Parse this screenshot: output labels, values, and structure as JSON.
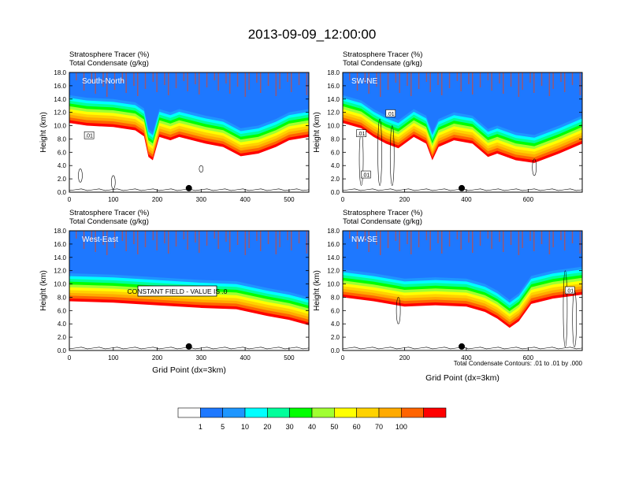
{
  "figure": {
    "title": "2013-09-09_12:00:00",
    "footnote": "Total Condensate Contours: .01 to .01 by .000",
    "y_axis_label": "Height (km)",
    "x_axis_label": "Grid Point (dx=3km)",
    "line1": "Stratosphere Tracer   (%)",
    "line2": "Total Condensate   (g/kg)"
  },
  "colorbar": {
    "labels": [
      "1",
      "5",
      "10",
      "20",
      "30",
      "40",
      "50",
      "60",
      "70",
      "100"
    ],
    "colors": [
      "#ffffff",
      "#1e78ff",
      "#1e96ff",
      "#00ffff",
      "#00ff9b",
      "#00ff00",
      "#a0ff32",
      "#ffff00",
      "#ffd200",
      "#ffaa00",
      "#ff6400",
      "#ff0000"
    ]
  },
  "chart_data": [
    {
      "type": "heatmap",
      "panel": "South-North",
      "xlim": [
        0,
        545
      ],
      "ylim": [
        0,
        18
      ],
      "xticks": [
        "0",
        "100",
        "200",
        "300",
        "400",
        "500"
      ],
      "xtick_values": [
        0,
        100,
        200,
        300,
        400,
        500
      ],
      "yticks": [
        "0.0",
        "2.0",
        "4.0",
        "6.0",
        "8.0",
        "10.0",
        "12.0",
        "14.0",
        "16.0",
        "18.0"
      ],
      "marker_x": 272,
      "contour_labels": [
        {
          "text": ".01",
          "x": 45,
          "y": 8.5
        }
      ],
      "tracer_front": [
        [
          0,
          14.6
        ],
        [
          40,
          14.2
        ],
        [
          100,
          14.0
        ],
        [
          150,
          13.5
        ],
        [
          170,
          12.6
        ],
        [
          180,
          9.5
        ],
        [
          190,
          9.0
        ],
        [
          205,
          12.5
        ],
        [
          230,
          12.0
        ],
        [
          250,
          12.5
        ],
        [
          280,
          12.0
        ],
        [
          310,
          11.5
        ],
        [
          350,
          11.0
        ],
        [
          390,
          9.6
        ],
        [
          430,
          10.0
        ],
        [
          470,
          11.0
        ],
        [
          500,
          12.0
        ],
        [
          545,
          12.5
        ]
      ]
    },
    {
      "type": "heatmap",
      "panel": "SW-NE",
      "xlim": [
        0,
        775
      ],
      "ylim": [
        0,
        18
      ],
      "xticks": [
        "0",
        "200",
        "400",
        "600"
      ],
      "xtick_values": [
        0,
        200,
        400,
        600
      ],
      "yticks": [
        "0.0",
        "2.0",
        "4.0",
        "6.0",
        "8.0",
        "10.0",
        "12.0",
        "14.0",
        "16.0",
        "18.0"
      ],
      "marker_x": 385,
      "contour_labels": [
        {
          "text": ".01",
          "x": 60,
          "y": 8.8
        },
        {
          "text": ".01",
          "x": 75,
          "y": 2.6
        },
        {
          "text": ".01",
          "x": 155,
          "y": 11.8
        }
      ],
      "tracer_front": [
        [
          0,
          14.6
        ],
        [
          60,
          13.8
        ],
        [
          100,
          12.5
        ],
        [
          140,
          11.5
        ],
        [
          180,
          10.8
        ],
        [
          230,
          12.5
        ],
        [
          270,
          11.5
        ],
        [
          290,
          9.0
        ],
        [
          310,
          11.0
        ],
        [
          360,
          12.0
        ],
        [
          420,
          11.5
        ],
        [
          470,
          9.5
        ],
        [
          500,
          10.0
        ],
        [
          560,
          9.0
        ],
        [
          620,
          8.6
        ],
        [
          700,
          10.0
        ],
        [
          775,
          11.5
        ]
      ]
    },
    {
      "type": "heatmap",
      "panel": "West-East",
      "xlim": [
        0,
        545
      ],
      "ylim": [
        0,
        18
      ],
      "xticks": [
        "0",
        "100",
        "200",
        "300",
        "400",
        "500"
      ],
      "xtick_values": [
        0,
        100,
        200,
        300,
        400,
        500
      ],
      "yticks": [
        "0.0",
        "2.0",
        "4.0",
        "6.0",
        "8.0",
        "10.0",
        "12.0",
        "14.0",
        "16.0",
        "18.0"
      ],
      "marker_x": 272,
      "note": "CONSTANT FIELD - VALUE IS .0",
      "contour_labels": [],
      "tracer_front": [
        [
          0,
          11.6
        ],
        [
          100,
          11.4
        ],
        [
          200,
          11.0
        ],
        [
          300,
          10.6
        ],
        [
          380,
          10.4
        ],
        [
          450,
          9.4
        ],
        [
          500,
          8.8
        ],
        [
          545,
          8.0
        ]
      ]
    },
    {
      "type": "heatmap",
      "panel": "NW-SE",
      "xlim": [
        0,
        775
      ],
      "ylim": [
        0,
        18
      ],
      "xticks": [
        "0",
        "200",
        "400",
        "600"
      ],
      "xtick_values": [
        0,
        200,
        400,
        600
      ],
      "yticks": [
        "0.0",
        "2.0",
        "4.0",
        "6.0",
        "8.0",
        "10.0",
        "12.0",
        "14.0",
        "16.0",
        "18.0"
      ],
      "marker_x": 385,
      "contour_labels": [
        {
          "text": ".01",
          "x": 735,
          "y": 9.0
        }
      ],
      "tracer_front": [
        [
          0,
          12.2
        ],
        [
          100,
          11.6
        ],
        [
          200,
          10.8
        ],
        [
          300,
          11.0
        ],
        [
          400,
          10.8
        ],
        [
          460,
          10.0
        ],
        [
          500,
          9.0
        ],
        [
          540,
          7.6
        ],
        [
          570,
          8.6
        ],
        [
          610,
          11.2
        ],
        [
          680,
          12.0
        ],
        [
          775,
          12.6
        ]
      ]
    }
  ]
}
